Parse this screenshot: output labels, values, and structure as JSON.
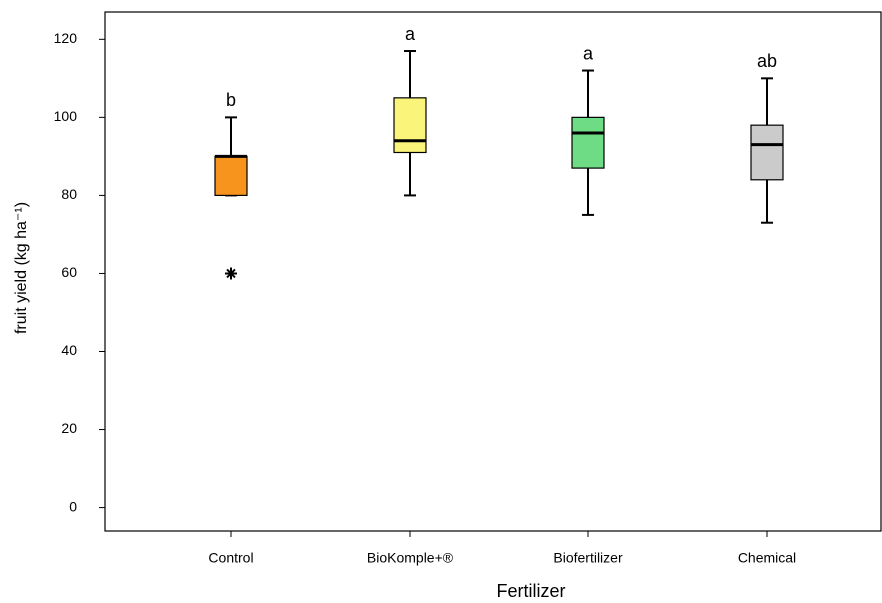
{
  "chart_data": {
    "type": "box",
    "xlabel": "Fertilizer",
    "ylabel": "fruit yield (kg ha⁻¹)",
    "categories": [
      "Control",
      "BioKomple+®",
      "Biofertilizer",
      "Chemical"
    ],
    "colors": [
      "#f7941d",
      "#faf47a",
      "#6ddc84",
      "#cbcbcb"
    ],
    "boxes": [
      {
        "min": 80,
        "q1": 80,
        "median": 90,
        "q3": 90,
        "max": 100,
        "outliers": [
          60
        ]
      },
      {
        "min": 80,
        "q1": 91,
        "median": 94,
        "q3": 105,
        "max": 117,
        "outliers": []
      },
      {
        "min": 75,
        "q1": 87,
        "median": 96,
        "q3": 100,
        "max": 112,
        "outliers": []
      },
      {
        "min": 73,
        "q1": 84,
        "median": 93,
        "q3": 98,
        "max": 110,
        "outliers": []
      }
    ],
    "annotations": [
      "b",
      "a",
      "a",
      "ab"
    ],
    "ylim": [
      -6,
      127
    ],
    "yticks": [
      0,
      20,
      40,
      60,
      80,
      100,
      120
    ]
  }
}
